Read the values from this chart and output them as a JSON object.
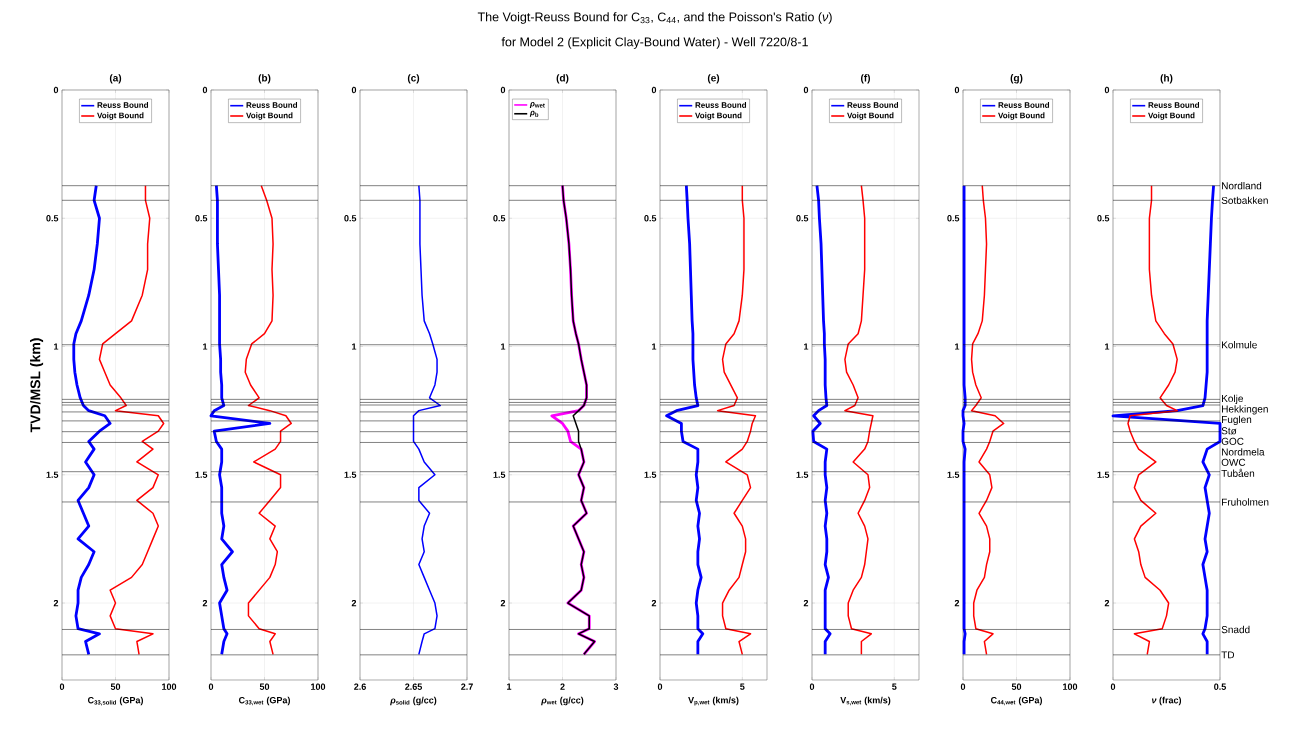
{
  "chart_data": [
    {
      "type": "line",
      "title": "(a)",
      "xlabel": "C$_{33,solid}$ (GPa)",
      "ylabel": "TVD/MSL (km)",
      "annotations": [
        "The Voigt-Reuss Bound for C$_{33}$, C$_{44}$, and the Poisson's Ratio (*ν*)",
        "for Model 2 (Explicit Clay-Bound Water) - Well 7220/8-1"
      ],
      "orientation": "horizontal",
      "xlim": [
        0,
        100
      ],
      "xticks": [
        0,
        50,
        100
      ],
      "ylim": [
        2.3,
        0
      ],
      "yticks": [
        0,
        0.5,
        1,
        1.5,
        2
      ],
      "grid": true,
      "legend": "top",
      "x": [
        0.373,
        0.43,
        0.5,
        0.6,
        0.7,
        0.8,
        0.9,
        0.95,
        0.99,
        1.05,
        1.1,
        1.15,
        1.2,
        1.23,
        1.25,
        1.27,
        1.3,
        1.33,
        1.37,
        1.4,
        1.45,
        1.5,
        1.55,
        1.6,
        1.65,
        1.7,
        1.75,
        1.8,
        1.85,
        1.9,
        1.95,
        2.0,
        2.05,
        2.1,
        2.12,
        2.15,
        2.2
      ],
      "series": [
        {
          "name": "Reuss Bound",
          "color": "#0000ff",
          "values": [
            32,
            30,
            35,
            33,
            30,
            25,
            18,
            13,
            11,
            11,
            12,
            14,
            17,
            20,
            25,
            40,
            45,
            35,
            25,
            30,
            22,
            30,
            25,
            15,
            20,
            25,
            15,
            30,
            25,
            18,
            15,
            15,
            13,
            15,
            35,
            22,
            25
          ]
        },
        {
          "name": "Voigt Bound",
          "color": "#ff0000",
          "values": [
            78,
            78,
            82,
            80,
            80,
            75,
            65,
            50,
            38,
            35,
            40,
            45,
            55,
            60,
            50,
            90,
            95,
            90,
            75,
            85,
            70,
            90,
            85,
            70,
            85,
            90,
            85,
            80,
            75,
            65,
            45,
            50,
            45,
            50,
            85,
            70,
            72
          ]
        }
      ],
      "ref_lines": [
        {
          "axis": "y",
          "value": 0.373
        },
        {
          "axis": "y",
          "value": 0.43
        },
        {
          "axis": "y",
          "value": 0.993
        },
        {
          "axis": "y",
          "value": 1.206
        },
        {
          "axis": "y",
          "value": 1.218
        },
        {
          "axis": "y",
          "value": 1.228
        },
        {
          "axis": "y",
          "value": 1.255
        },
        {
          "axis": "y",
          "value": 1.29
        },
        {
          "axis": "y",
          "value": 1.332
        },
        {
          "axis": "y",
          "value": 1.374
        },
        {
          "axis": "y",
          "value": 1.488
        },
        {
          "axis": "y",
          "value": 1.606
        },
        {
          "axis": "y",
          "value": 2.103
        },
        {
          "axis": "y",
          "value": 2.202
        }
      ]
    },
    {
      "type": "line",
      "title": "(b)",
      "xlabel": "C$_{33,wet}$ (GPa)",
      "orientation": "horizontal",
      "xlim": [
        0,
        100
      ],
      "xticks": [
        0,
        50,
        100
      ],
      "ylim": [
        2.3,
        0
      ],
      "yticks": [
        0,
        0.5,
        1,
        1.5,
        2
      ],
      "grid": true,
      "legend": "top",
      "x": [
        0.373,
        0.43,
        0.5,
        0.6,
        0.7,
        0.8,
        0.9,
        0.95,
        0.99,
        1.05,
        1.1,
        1.15,
        1.2,
        1.23,
        1.25,
        1.27,
        1.3,
        1.33,
        1.37,
        1.4,
        1.45,
        1.5,
        1.55,
        1.6,
        1.65,
        1.7,
        1.75,
        1.8,
        1.85,
        1.9,
        1.95,
        2.0,
        2.05,
        2.1,
        2.12,
        2.15,
        2.2
      ],
      "series": [
        {
          "name": "Reuss Bound",
          "color": "#0000ff",
          "values": [
            5,
            6,
            6,
            6,
            7,
            8,
            8,
            8,
            8,
            9,
            9,
            10,
            10,
            12,
            3,
            0,
            55,
            3,
            5,
            10,
            10,
            8,
            10,
            10,
            10,
            12,
            10,
            20,
            10,
            12,
            15,
            8,
            10,
            12,
            15,
            12,
            10
          ]
        },
        {
          "name": "Voigt Bound",
          "color": "#ff0000",
          "values": [
            47,
            52,
            57,
            58,
            57,
            58,
            57,
            50,
            38,
            33,
            32,
            37,
            45,
            35,
            55,
            70,
            75,
            65,
            65,
            60,
            40,
            65,
            65,
            55,
            45,
            60,
            55,
            62,
            60,
            55,
            45,
            35,
            35,
            45,
            60,
            55,
            58
          ]
        }
      ],
      "ref_lines": [
        {
          "axis": "y",
          "value": 0.373
        },
        {
          "axis": "y",
          "value": 0.43
        },
        {
          "axis": "y",
          "value": 0.993
        },
        {
          "axis": "y",
          "value": 1.206
        },
        {
          "axis": "y",
          "value": 1.218
        },
        {
          "axis": "y",
          "value": 1.228
        },
        {
          "axis": "y",
          "value": 1.255
        },
        {
          "axis": "y",
          "value": 1.29
        },
        {
          "axis": "y",
          "value": 1.332
        },
        {
          "axis": "y",
          "value": 1.374
        },
        {
          "axis": "y",
          "value": 1.488
        },
        {
          "axis": "y",
          "value": 1.606
        },
        {
          "axis": "y",
          "value": 2.103
        },
        {
          "axis": "y",
          "value": 2.202
        }
      ]
    },
    {
      "type": "line",
      "title": "(c)",
      "xlabel": "*ρ*$_{solid}$ (g/cc)",
      "orientation": "horizontal",
      "xlim": [
        2.6,
        2.7
      ],
      "xticks": [
        2.6,
        2.65,
        2.7
      ],
      "ylim": [
        2.3,
        0
      ],
      "yticks": [
        0,
        0.5,
        1,
        1.5,
        2
      ],
      "grid": true,
      "x": [
        0.373,
        0.43,
        0.5,
        0.6,
        0.7,
        0.8,
        0.9,
        0.95,
        0.99,
        1.05,
        1.1,
        1.15,
        1.2,
        1.23,
        1.25,
        1.27,
        1.3,
        1.33,
        1.37,
        1.4,
        1.45,
        1.5,
        1.55,
        1.6,
        1.65,
        1.7,
        1.75,
        1.8,
        1.85,
        1.9,
        1.95,
        2.0,
        2.05,
        2.1,
        2.12,
        2.15,
        2.2
      ],
      "series": [
        {
          "color": "#0000ff",
          "values": [
            2.655,
            2.656,
            2.656,
            2.656,
            2.657,
            2.658,
            2.66,
            2.665,
            2.668,
            2.672,
            2.672,
            2.67,
            2.665,
            2.675,
            2.655,
            2.65,
            2.65,
            2.65,
            2.65,
            2.655,
            2.66,
            2.67,
            2.655,
            2.655,
            2.665,
            2.66,
            2.658,
            2.66,
            2.655,
            2.66,
            2.665,
            2.67,
            2.672,
            2.67,
            2.66,
            2.658,
            2.655
          ]
        }
      ],
      "ref_lines": [
        {
          "axis": "y",
          "value": 0.373
        },
        {
          "axis": "y",
          "value": 0.43
        },
        {
          "axis": "y",
          "value": 0.993
        },
        {
          "axis": "y",
          "value": 1.206
        },
        {
          "axis": "y",
          "value": 1.218
        },
        {
          "axis": "y",
          "value": 1.228
        },
        {
          "axis": "y",
          "value": 1.255
        },
        {
          "axis": "y",
          "value": 1.29
        },
        {
          "axis": "y",
          "value": 1.332
        },
        {
          "axis": "y",
          "value": 1.374
        },
        {
          "axis": "y",
          "value": 1.488
        },
        {
          "axis": "y",
          "value": 1.606
        },
        {
          "axis": "y",
          "value": 2.103
        },
        {
          "axis": "y",
          "value": 2.202
        }
      ]
    },
    {
      "type": "line",
      "title": "(d)",
      "xlabel": "*ρ*$_{wet}$ (g/cc)",
      "orientation": "horizontal",
      "xlim": [
        1,
        3
      ],
      "xticks": [
        1,
        2,
        3
      ],
      "ylim": [
        2.3,
        0
      ],
      "yticks": [
        0,
        0.5,
        1,
        1.5,
        2
      ],
      "grid": true,
      "legend": "top left",
      "x": [
        0.373,
        0.43,
        0.5,
        0.6,
        0.7,
        0.8,
        0.9,
        0.95,
        0.99,
        1.05,
        1.1,
        1.15,
        1.2,
        1.23,
        1.25,
        1.27,
        1.3,
        1.33,
        1.37,
        1.4,
        1.45,
        1.5,
        1.55,
        1.6,
        1.65,
        1.7,
        1.75,
        1.8,
        1.85,
        1.9,
        1.95,
        2.0,
        2.05,
        2.1,
        2.12,
        2.15,
        2.2
      ],
      "series": [
        {
          "name": "*ρ*$_{wet}$",
          "color": "#ff00ff",
          "values": [
            2.0,
            2.02,
            2.07,
            2.12,
            2.15,
            2.17,
            2.2,
            2.25,
            2.3,
            2.35,
            2.4,
            2.45,
            2.45,
            2.4,
            2.3,
            1.8,
            2.0,
            2.1,
            2.15,
            2.35,
            2.4,
            2.3,
            2.4,
            2.35,
            2.45,
            2.2,
            2.3,
            2.4,
            2.35,
            2.4,
            2.35,
            2.1,
            2.5,
            2.5,
            2.3,
            2.6,
            2.4
          ]
        },
        {
          "name": "*ρ*$_{b}$",
          "color": "#000000",
          "values": [
            2.0,
            2.02,
            2.07,
            2.12,
            2.15,
            2.17,
            2.2,
            2.25,
            2.3,
            2.35,
            2.4,
            2.45,
            2.45,
            2.4,
            2.3,
            2.2,
            2.25,
            2.3,
            2.3,
            2.35,
            2.4,
            2.3,
            2.4,
            2.35,
            2.45,
            2.2,
            2.3,
            2.4,
            2.35,
            2.4,
            2.35,
            2.1,
            2.5,
            2.5,
            2.3,
            2.6,
            2.4
          ]
        }
      ],
      "ref_lines": [
        {
          "axis": "y",
          "value": 0.373
        },
        {
          "axis": "y",
          "value": 0.43
        },
        {
          "axis": "y",
          "value": 0.993
        },
        {
          "axis": "y",
          "value": 1.206
        },
        {
          "axis": "y",
          "value": 1.218
        },
        {
          "axis": "y",
          "value": 1.228
        },
        {
          "axis": "y",
          "value": 1.255
        },
        {
          "axis": "y",
          "value": 1.29
        },
        {
          "axis": "y",
          "value": 1.332
        },
        {
          "axis": "y",
          "value": 1.374
        },
        {
          "axis": "y",
          "value": 1.488
        },
        {
          "axis": "y",
          "value": 1.606
        },
        {
          "axis": "y",
          "value": 2.103
        },
        {
          "axis": "y",
          "value": 2.202
        }
      ]
    },
    {
      "type": "line",
      "title": "(e)",
      "xlabel": "V$_{p,wet}$ (km/s)",
      "orientation": "horizontal",
      "xlim": [
        0,
        6.5
      ],
      "xticks": [
        0,
        5
      ],
      "ylim": [
        2.3,
        0
      ],
      "yticks": [
        0,
        0.5,
        1,
        1.5,
        2
      ],
      "grid": true,
      "legend": "top",
      "x": [
        0.373,
        0.43,
        0.5,
        0.6,
        0.7,
        0.8,
        0.9,
        0.95,
        0.99,
        1.05,
        1.1,
        1.15,
        1.2,
        1.23,
        1.25,
        1.27,
        1.3,
        1.33,
        1.37,
        1.4,
        1.45,
        1.5,
        1.55,
        1.6,
        1.65,
        1.7,
        1.75,
        1.8,
        1.85,
        1.9,
        1.95,
        2.0,
        2.05,
        2.1,
        2.12,
        2.15,
        2.2
      ],
      "series": [
        {
          "name": "Reuss Bound",
          "color": "#0000ff",
          "values": [
            1.6,
            1.65,
            1.7,
            1.8,
            1.85,
            1.9,
            1.95,
            2.0,
            2.0,
            2.0,
            2.05,
            2.1,
            2.2,
            2.3,
            1.0,
            0.4,
            1.3,
            1.3,
            1.4,
            2.3,
            2.3,
            2.2,
            2.3,
            2.2,
            2.4,
            2.3,
            2.4,
            2.3,
            2.3,
            2.5,
            2.3,
            2.2,
            2.3,
            2.3,
            2.6,
            2.3,
            2.3
          ]
        },
        {
          "name": "Voigt Bound",
          "color": "#ff0000",
          "values": [
            5.0,
            5.0,
            5.1,
            5.1,
            5.1,
            5.0,
            4.8,
            4.5,
            4.0,
            3.8,
            3.9,
            4.3,
            4.7,
            4.5,
            3.5,
            5.8,
            5.6,
            5.5,
            5.3,
            5.0,
            4.0,
            5.3,
            5.5,
            5.0,
            4.5,
            5.0,
            5.2,
            5.2,
            5.0,
            4.8,
            4.2,
            3.8,
            3.8,
            4.0,
            5.5,
            4.8,
            5.0
          ]
        }
      ],
      "ref_lines": [
        {
          "axis": "y",
          "value": 0.373
        },
        {
          "axis": "y",
          "value": 0.43
        },
        {
          "axis": "y",
          "value": 0.993
        },
        {
          "axis": "y",
          "value": 1.206
        },
        {
          "axis": "y",
          "value": 1.218
        },
        {
          "axis": "y",
          "value": 1.228
        },
        {
          "axis": "y",
          "value": 1.255
        },
        {
          "axis": "y",
          "value": 1.29
        },
        {
          "axis": "y",
          "value": 1.332
        },
        {
          "axis": "y",
          "value": 1.374
        },
        {
          "axis": "y",
          "value": 1.488
        },
        {
          "axis": "y",
          "value": 1.606
        },
        {
          "axis": "y",
          "value": 2.103
        },
        {
          "axis": "y",
          "value": 2.202
        }
      ]
    },
    {
      "type": "line",
      "title": "(f)",
      "xlabel": "V$_{s,wet}$ (km/s)",
      "orientation": "horizontal",
      "xlim": [
        0,
        6.5
      ],
      "xticks": [
        0,
        5
      ],
      "ylim": [
        2.3,
        0
      ],
      "yticks": [
        0,
        0.5,
        1,
        1.5,
        2
      ],
      "grid": true,
      "legend": "top",
      "x": [
        0.373,
        0.43,
        0.5,
        0.6,
        0.7,
        0.8,
        0.9,
        0.95,
        0.99,
        1.05,
        1.1,
        1.15,
        1.2,
        1.23,
        1.25,
        1.27,
        1.3,
        1.33,
        1.37,
        1.4,
        1.45,
        1.5,
        1.55,
        1.6,
        1.65,
        1.7,
        1.75,
        1.8,
        1.85,
        1.9,
        1.95,
        2.0,
        2.05,
        2.1,
        2.12,
        2.15,
        2.2
      ],
      "series": [
        {
          "name": "Reuss Bound",
          "color": "#0000ff",
          "values": [
            0.3,
            0.4,
            0.45,
            0.55,
            0.6,
            0.65,
            0.7,
            0.75,
            0.75,
            0.8,
            0.8,
            0.8,
            0.85,
            0.9,
            0.4,
            0.1,
            0.5,
            0.05,
            0.1,
            0.9,
            0.8,
            0.8,
            0.9,
            0.8,
            0.9,
            0.8,
            0.9,
            0.9,
            0.8,
            1.0,
            0.8,
            0.8,
            0.8,
            0.8,
            1.1,
            0.8,
            0.8
          ]
        },
        {
          "name": "Voigt Bound",
          "color": "#ff0000",
          "values": [
            3.0,
            3.1,
            3.2,
            3.2,
            3.2,
            3.1,
            3.0,
            2.8,
            2.2,
            2.0,
            2.1,
            2.5,
            2.8,
            2.6,
            2.0,
            3.7,
            3.6,
            3.5,
            3.4,
            3.2,
            2.5,
            3.4,
            3.5,
            3.2,
            2.8,
            3.2,
            3.4,
            3.3,
            3.2,
            3.0,
            2.5,
            2.2,
            2.2,
            2.4,
            3.6,
            3.0,
            3.0
          ]
        }
      ],
      "ref_lines": [
        {
          "axis": "y",
          "value": 0.373
        },
        {
          "axis": "y",
          "value": 0.43
        },
        {
          "axis": "y",
          "value": 0.993
        },
        {
          "axis": "y",
          "value": 1.206
        },
        {
          "axis": "y",
          "value": 1.218
        },
        {
          "axis": "y",
          "value": 1.228
        },
        {
          "axis": "y",
          "value": 1.255
        },
        {
          "axis": "y",
          "value": 1.29
        },
        {
          "axis": "y",
          "value": 1.332
        },
        {
          "axis": "y",
          "value": 1.374
        },
        {
          "axis": "y",
          "value": 1.488
        },
        {
          "axis": "y",
          "value": 1.606
        },
        {
          "axis": "y",
          "value": 2.103
        },
        {
          "axis": "y",
          "value": 2.202
        }
      ]
    },
    {
      "type": "line",
      "title": "(g)",
      "xlabel": "C$_{44,wet}$ (GPa)",
      "orientation": "horizontal",
      "xlim": [
        0,
        100
      ],
      "xticks": [
        0,
        50,
        100
      ],
      "ylim": [
        2.3,
        0
      ],
      "yticks": [
        0,
        0.5,
        1,
        1.5,
        2
      ],
      "grid": true,
      "legend": "top",
      "x": [
        0.373,
        0.43,
        0.5,
        0.6,
        0.7,
        0.8,
        0.9,
        0.95,
        0.99,
        1.05,
        1.1,
        1.15,
        1.2,
        1.23,
        1.25,
        1.27,
        1.3,
        1.33,
        1.37,
        1.4,
        1.45,
        1.5,
        1.55,
        1.6,
        1.65,
        1.7,
        1.75,
        1.8,
        1.85,
        1.9,
        1.95,
        2.0,
        2.05,
        2.1,
        2.12,
        2.15,
        2.2
      ],
      "series": [
        {
          "name": "Reuss Bound",
          "color": "#0000ff",
          "values": [
            1,
            1,
            1,
            1,
            1,
            1,
            1,
            1,
            1,
            1,
            1,
            1,
            2,
            2,
            0,
            0,
            1,
            0,
            0,
            2,
            1,
            1,
            1,
            1,
            1,
            1,
            1,
            1,
            1,
            1,
            1,
            1,
            1,
            1,
            2,
            1,
            1
          ]
        },
        {
          "name": "Voigt Bound",
          "color": "#ff0000",
          "values": [
            18,
            19,
            21,
            22,
            21,
            20,
            18,
            14,
            9,
            8,
            9,
            12,
            17,
            12,
            8,
            30,
            38,
            28,
            25,
            22,
            15,
            25,
            27,
            22,
            15,
            22,
            25,
            25,
            22,
            20,
            13,
            10,
            10,
            12,
            28,
            20,
            22
          ]
        }
      ],
      "ref_lines": [
        {
          "axis": "y",
          "value": 0.373
        },
        {
          "axis": "y",
          "value": 0.43
        },
        {
          "axis": "y",
          "value": 0.993
        },
        {
          "axis": "y",
          "value": 1.206
        },
        {
          "axis": "y",
          "value": 1.218
        },
        {
          "axis": "y",
          "value": 1.228
        },
        {
          "axis": "y",
          "value": 1.255
        },
        {
          "axis": "y",
          "value": 1.29
        },
        {
          "axis": "y",
          "value": 1.332
        },
        {
          "axis": "y",
          "value": 1.374
        },
        {
          "axis": "y",
          "value": 1.488
        },
        {
          "axis": "y",
          "value": 1.606
        },
        {
          "axis": "y",
          "value": 2.103
        },
        {
          "axis": "y",
          "value": 2.202
        }
      ]
    },
    {
      "type": "line",
      "title": "(h)",
      "xlabel": "*ν* (frac)",
      "orientation": "horizontal",
      "xlim": [
        0,
        0.5
      ],
      "xticks": [
        0,
        0.5
      ],
      "ylim": [
        2.3,
        0
      ],
      "yticks": [
        0,
        0.5,
        1,
        1.5,
        2
      ],
      "grid": true,
      "legend": "top",
      "x": [
        0.373,
        0.43,
        0.5,
        0.6,
        0.7,
        0.8,
        0.9,
        0.95,
        0.99,
        1.05,
        1.1,
        1.15,
        1.2,
        1.23,
        1.25,
        1.27,
        1.3,
        1.33,
        1.37,
        1.4,
        1.45,
        1.5,
        1.55,
        1.6,
        1.65,
        1.7,
        1.75,
        1.8,
        1.85,
        1.9,
        1.95,
        2.0,
        2.05,
        2.1,
        2.12,
        2.15,
        2.2
      ],
      "series": [
        {
          "name": "Reuss Bound",
          "color": "#0000ff",
          "values": [
            0.47,
            0.465,
            0.46,
            0.455,
            0.45,
            0.445,
            0.44,
            0.44,
            0.44,
            0.44,
            0.44,
            0.435,
            0.43,
            0.42,
            0.3,
            0.0,
            0.5,
            0.5,
            0.5,
            0.44,
            0.42,
            0.45,
            0.43,
            0.44,
            0.45,
            0.44,
            0.43,
            0.44,
            0.42,
            0.43,
            0.44,
            0.44,
            0.44,
            0.43,
            0.42,
            0.44,
            0.44
          ]
        },
        {
          "name": "Voigt Bound",
          "color": "#ff0000",
          "values": [
            0.18,
            0.18,
            0.17,
            0.17,
            0.17,
            0.18,
            0.2,
            0.24,
            0.28,
            0.3,
            0.29,
            0.26,
            0.22,
            0.25,
            0.3,
            0.08,
            0.07,
            0.08,
            0.1,
            0.12,
            0.2,
            0.12,
            0.1,
            0.13,
            0.2,
            0.13,
            0.1,
            0.12,
            0.13,
            0.15,
            0.22,
            0.26,
            0.25,
            0.23,
            0.1,
            0.17,
            0.16
          ]
        }
      ],
      "ref_lines": [
        {
          "axis": "y",
          "value": 0.373,
          "label": "Nordland"
        },
        {
          "axis": "y",
          "value": 0.43,
          "label": "Sotbakken"
        },
        {
          "axis": "y",
          "value": 0.993,
          "label": "Kolmule"
        },
        {
          "axis": "y",
          "value": 1.206,
          "label": "Kolje"
        },
        {
          "axis": "y",
          "value": 1.218,
          "label": "Hekkingen"
        },
        {
          "axis": "y",
          "value": 1.228,
          "label": "Fuglen"
        },
        {
          "axis": "y",
          "value": 1.255,
          "label": "Stø"
        },
        {
          "axis": "y",
          "value": 1.29,
          "label": "GOC"
        },
        {
          "axis": "y",
          "value": 1.332,
          "label": "Nordmela"
        },
        {
          "axis": "y",
          "value": 1.374,
          "label": "OWC"
        },
        {
          "axis": "y",
          "value": 1.488,
          "label": "Tubåen"
        },
        {
          "axis": "y",
          "value": 1.606,
          "label": "Fruholmen"
        },
        {
          "axis": "y",
          "value": 2.103,
          "label": "Snadd"
        },
        {
          "axis": "y",
          "value": 2.202,
          "label": "TD"
        }
      ]
    }
  ]
}
